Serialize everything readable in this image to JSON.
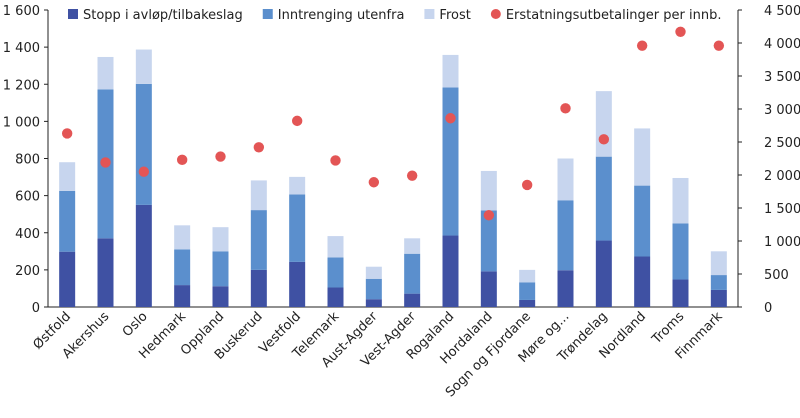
{
  "chart_data": {
    "type": "bar",
    "stacked": true,
    "categories": [
      "Østfold",
      "Akershus",
      "Oslo",
      "Hedmark",
      "Oppland",
      "Buskerud",
      "Vestfold",
      "Telemark",
      "Aust-Agder",
      "Vest-Agder",
      "Rogaland",
      "Hordaland",
      "Sogn og Fjordane",
      "Møre og...",
      "Trøndelag",
      "Nordland",
      "Troms",
      "Finnmark"
    ],
    "series": [
      {
        "name": "Stopp i avløp/tilbakeslag",
        "color": "#3f51a3",
        "axis": "left",
        "values": [
          298,
          370,
          550,
          118,
          112,
          200,
          243,
          105,
          42,
          72,
          385,
          192,
          38,
          198,
          358,
          272,
          148,
          92
        ]
      },
      {
        "name": "Inntrenging utenfra",
        "color": "#5b8fcd",
        "axis": "left",
        "values": [
          327,
          802,
          652,
          192,
          188,
          322,
          363,
          162,
          110,
          215,
          798,
          328,
          95,
          377,
          452,
          382,
          302,
          80
        ]
      },
      {
        "name": "Frost",
        "color": "#c7d5ee",
        "axis": "left",
        "values": [
          155,
          175,
          185,
          130,
          130,
          160,
          95,
          115,
          65,
          83,
          175,
          213,
          67,
          225,
          353,
          308,
          245,
          128
        ]
      },
      {
        "name": "Erstatningsutbetalinger per innb.",
        "color": "#e35555",
        "axis": "right",
        "type": "scatter",
        "values": [
          2630,
          2190,
          2050,
          2230,
          2280,
          2420,
          2820,
          2220,
          1890,
          1990,
          2860,
          1390,
          1850,
          3010,
          2540,
          3960,
          4170,
          3960
        ]
      }
    ],
    "y_left": {
      "min": 0,
      "max": 1600,
      "step": 200,
      "tick_labels": [
        "0",
        "200",
        "400",
        "600",
        "800",
        "1 000",
        "1 200",
        "1 400",
        "1 600"
      ]
    },
    "y_right": {
      "min": 0,
      "max": 4500,
      "step": 500,
      "tick_labels": [
        "0",
        "500",
        "1 000",
        "1 500",
        "2 000",
        "2 500",
        "3 000",
        "3 500",
        "4 000",
        "4 500"
      ]
    },
    "legend_position": "top",
    "grid": false
  }
}
